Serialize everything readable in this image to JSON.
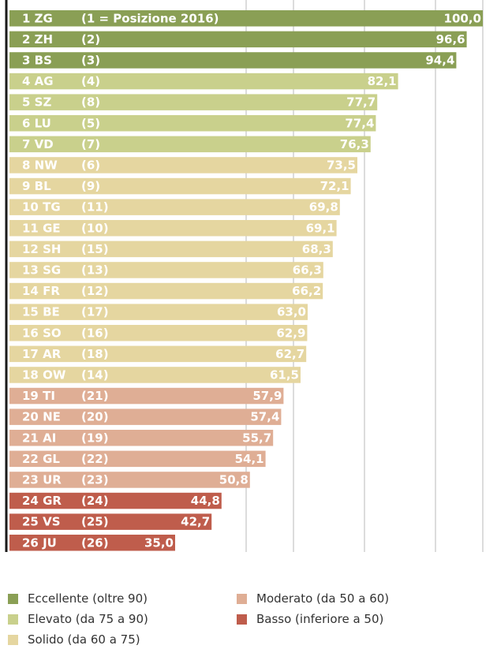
{
  "chart_data": {
    "type": "bar",
    "orientation": "horizontal",
    "header_note": "(1 = Posizione 2016)",
    "xlim": [
      0,
      100
    ],
    "ticks": [
      50,
      60,
      75,
      90,
      100
    ],
    "tick_labels": [
      "50",
      "60",
      "75",
      "90",
      "100"
    ],
    "grid": true,
    "categories": [
      {
        "rank": "1",
        "code": "ZG",
        "prev": "",
        "value": 100.0,
        "label": "100,0",
        "class": "eccellente"
      },
      {
        "rank": "2",
        "code": "ZH",
        "prev": "(2)",
        "value": 96.6,
        "label": "96,6",
        "class": "eccellente"
      },
      {
        "rank": "3",
        "code": "BS",
        "prev": "(3)",
        "value": 94.4,
        "label": "94,4",
        "class": "eccellente"
      },
      {
        "rank": "4",
        "code": "AG",
        "prev": "(4)",
        "value": 82.1,
        "label": "82,1",
        "class": "elevato"
      },
      {
        "rank": "5",
        "code": "SZ",
        "prev": "(8)",
        "value": 77.7,
        "label": "77,7",
        "class": "elevato"
      },
      {
        "rank": "6",
        "code": "LU",
        "prev": "(5)",
        "value": 77.4,
        "label": "77,4",
        "class": "elevato"
      },
      {
        "rank": "7",
        "code": "VD",
        "prev": "(7)",
        "value": 76.3,
        "label": "76,3",
        "class": "elevato"
      },
      {
        "rank": "8",
        "code": "NW",
        "prev": "(6)",
        "value": 73.5,
        "label": "73,5",
        "class": "solido"
      },
      {
        "rank": "9",
        "code": "BL",
        "prev": "(9)",
        "value": 72.1,
        "label": "72,1",
        "class": "solido"
      },
      {
        "rank": "10",
        "code": "TG",
        "prev": "(11)",
        "value": 69.8,
        "label": "69,8",
        "class": "solido"
      },
      {
        "rank": "11",
        "code": "GE",
        "prev": "(10)",
        "value": 69.1,
        "label": "69,1",
        "class": "solido"
      },
      {
        "rank": "12",
        "code": "SH",
        "prev": "(15)",
        "value": 68.3,
        "label": "68,3",
        "class": "solido"
      },
      {
        "rank": "13",
        "code": "SG",
        "prev": "(13)",
        "value": 66.3,
        "label": "66,3",
        "class": "solido"
      },
      {
        "rank": "14",
        "code": "FR",
        "prev": "(12)",
        "value": 66.2,
        "label": "66,2",
        "class": "solido"
      },
      {
        "rank": "15",
        "code": "BE",
        "prev": "(17)",
        "value": 63.0,
        "label": "63,0",
        "class": "solido"
      },
      {
        "rank": "16",
        "code": "SO",
        "prev": "(16)",
        "value": 62.9,
        "label": "62,9",
        "class": "solido"
      },
      {
        "rank": "17",
        "code": "AR",
        "prev": "(18)",
        "value": 62.7,
        "label": "62,7",
        "class": "solido"
      },
      {
        "rank": "18",
        "code": "OW",
        "prev": "(14)",
        "value": 61.5,
        "label": "61,5",
        "class": "solido"
      },
      {
        "rank": "19",
        "code": "TI",
        "prev": "(21)",
        "value": 57.9,
        "label": "57,9",
        "class": "moderato"
      },
      {
        "rank": "20",
        "code": "NE",
        "prev": "(20)",
        "value": 57.4,
        "label": "57,4",
        "class": "moderato"
      },
      {
        "rank": "21",
        "code": "AI",
        "prev": "(19)",
        "value": 55.7,
        "label": "55,7",
        "class": "moderato"
      },
      {
        "rank": "22",
        "code": "GL",
        "prev": "(22)",
        "value": 54.1,
        "label": "54,1",
        "class": "moderato"
      },
      {
        "rank": "23",
        "code": "UR",
        "prev": "(23)",
        "value": 50.8,
        "label": "50,8",
        "class": "moderato"
      },
      {
        "rank": "24",
        "code": "GR",
        "prev": "(24)",
        "value": 44.8,
        "label": "44,8",
        "class": "basso"
      },
      {
        "rank": "25",
        "code": "VS",
        "prev": "(25)",
        "value": 42.7,
        "label": "42,7",
        "class": "basso"
      },
      {
        "rank": "26",
        "code": "JU",
        "prev": "(26)",
        "value": 35.0,
        "label": "35,0",
        "class": "basso"
      }
    ],
    "classes": {
      "eccellente": {
        "label": "Eccellente (oltre 90)",
        "color": "#8a9f55"
      },
      "elevato": {
        "label": "Elevato (da 75 a 90)",
        "color": "#c9d08c"
      },
      "solido": {
        "label": "Solido (da 60 a 75)",
        "color": "#e5d6a0"
      },
      "moderato": {
        "label": "Moderato (da 50 a 60)",
        "color": "#dfae95"
      },
      "basso": {
        "label": "Basso (inferiore a 50)",
        "color": "#bf5d4c"
      }
    },
    "legend": {
      "left": [
        "eccellente",
        "elevato",
        "solido"
      ],
      "right": [
        "moderato",
        "basso"
      ]
    },
    "colors": {
      "axis": "#1a1a1a",
      "grid": "#b9b9b9",
      "bar_text": "#ffffff",
      "tick_text": "#333333"
    }
  }
}
